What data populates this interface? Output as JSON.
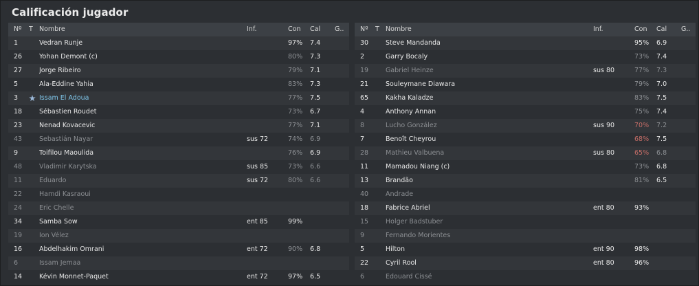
{
  "title": "Calificación jugador",
  "headers": {
    "no": "Nº",
    "t": "T",
    "name": "Nombre",
    "inf": "Inf.",
    "con": "Con",
    "cal": "Cal",
    "g": "G.."
  },
  "left_rows": [
    {
      "no": "1",
      "name": "Vedran Runje",
      "inf": "",
      "con": "97%",
      "cal": "7.4",
      "dim": false,
      "con_dim": false
    },
    {
      "no": "26",
      "name": "Yohan Demont (c)",
      "inf": "",
      "con": "80%",
      "cal": "7.3",
      "dim": false,
      "con_dim": true
    },
    {
      "no": "27",
      "name": "Jorge Ribeiro",
      "inf": "",
      "con": "79%",
      "cal": "7.1",
      "dim": false,
      "con_dim": true
    },
    {
      "no": "5",
      "name": "Ala-Eddine Yahia",
      "inf": "",
      "con": "83%",
      "cal": "7.3",
      "dim": false,
      "con_dim": true
    },
    {
      "no": "3",
      "name": "Issam El Adoua",
      "inf": "",
      "con": "77%",
      "cal": "7.5",
      "dim": false,
      "con_dim": true,
      "link": true,
      "star": true
    },
    {
      "no": "18",
      "name": "Sébastien Roudet",
      "inf": "",
      "con": "73%",
      "cal": "6.7",
      "dim": false,
      "con_dim": true
    },
    {
      "no": "23",
      "name": "Nenad Kovacevic",
      "inf": "",
      "con": "77%",
      "cal": "7.1",
      "dim": false,
      "con_dim": true
    },
    {
      "no": "43",
      "name": "Sebastián Nayar",
      "inf": "sus 72",
      "con": "74%",
      "cal": "6.9",
      "dim": true,
      "con_dim": true
    },
    {
      "no": "9",
      "name": "Toifilou Maoulida",
      "inf": "",
      "con": "76%",
      "cal": "6.9",
      "dim": false,
      "con_dim": true
    },
    {
      "no": "48",
      "name": "Vladimir Karytska",
      "inf": "sus 85",
      "con": "73%",
      "cal": "6.6",
      "dim": true,
      "con_dim": true
    },
    {
      "no": "11",
      "name": "Eduardo",
      "inf": "sus 72",
      "con": "80%",
      "cal": "6.6",
      "dim": true,
      "con_dim": true
    },
    {
      "no": "22",
      "name": "Hamdi Kasraoui",
      "inf": "",
      "con": "",
      "cal": "",
      "dim": true,
      "con_dim": false
    },
    {
      "no": "24",
      "name": "Eric Chelle",
      "inf": "",
      "con": "",
      "cal": "",
      "dim": true,
      "con_dim": false
    },
    {
      "no": "34",
      "name": "Samba Sow",
      "inf": "ent 85",
      "con": "99%",
      "cal": "",
      "dim": false,
      "con_dim": false
    },
    {
      "no": "19",
      "name": "Ion Vélez",
      "inf": "",
      "con": "",
      "cal": "",
      "dim": true,
      "con_dim": false
    },
    {
      "no": "16",
      "name": "Abdelhakim Omrani",
      "inf": "ent 72",
      "con": "90%",
      "cal": "6.8",
      "dim": false,
      "con_dim": true
    },
    {
      "no": "6",
      "name": "Issam Jemaa",
      "inf": "",
      "con": "",
      "cal": "",
      "dim": true,
      "con_dim": false
    },
    {
      "no": "14",
      "name": "Kévin Monnet-Paquet",
      "inf": "ent 72",
      "con": "97%",
      "cal": "6.5",
      "dim": false,
      "con_dim": false
    }
  ],
  "right_rows": [
    {
      "no": "30",
      "name": "Steve Mandanda",
      "inf": "",
      "con": "95%",
      "cal": "6.9",
      "dim": false,
      "con_dim": false
    },
    {
      "no": "2",
      "name": "Garry Bocaly",
      "inf": "",
      "con": "73%",
      "cal": "7.4",
      "dim": false,
      "con_dim": true
    },
    {
      "no": "19",
      "name": "Gabriel Heinze",
      "inf": "sus 80",
      "con": "77%",
      "cal": "7.3",
      "dim": true,
      "con_dim": true
    },
    {
      "no": "21",
      "name": "Souleymane Diawara",
      "inf": "",
      "con": "79%",
      "cal": "7.0",
      "dim": false,
      "con_dim": true
    },
    {
      "no": "65",
      "name": "Kakha Kaladze",
      "inf": "",
      "con": "83%",
      "cal": "7.5",
      "dim": false,
      "con_dim": true
    },
    {
      "no": "4",
      "name": "Anthony Annan",
      "inf": "",
      "con": "75%",
      "cal": "7.4",
      "dim": false,
      "con_dim": true
    },
    {
      "no": "8",
      "name": "Lucho González",
      "inf": "sus 90",
      "con": "70%",
      "cal": "7.2",
      "dim": true,
      "con_low": true
    },
    {
      "no": "7",
      "name": "Benoît Cheyrou",
      "inf": "",
      "con": "68%",
      "cal": "7.5",
      "dim": false,
      "con_low": true
    },
    {
      "no": "28",
      "name": "Mathieu Valbuena",
      "inf": "sus 80",
      "con": "65%",
      "cal": "6.8",
      "dim": true,
      "con_low": true
    },
    {
      "no": "11",
      "name": "Mamadou Niang (c)",
      "inf": "",
      "con": "73%",
      "cal": "6.8",
      "dim": false,
      "con_dim": true
    },
    {
      "no": "13",
      "name": "Brandão",
      "inf": "",
      "con": "81%",
      "cal": "6.5",
      "dim": false,
      "con_dim": true
    },
    {
      "no": "40",
      "name": "Andrade",
      "inf": "",
      "con": "",
      "cal": "",
      "dim": true,
      "con_dim": false
    },
    {
      "no": "18",
      "name": "Fabrice Abriel",
      "inf": "ent 80",
      "con": "93%",
      "cal": "",
      "dim": false,
      "con_dim": false
    },
    {
      "no": "15",
      "name": "Holger Badstuber",
      "inf": "",
      "con": "",
      "cal": "",
      "dim": true,
      "con_dim": false
    },
    {
      "no": "9",
      "name": "Fernando Morientes",
      "inf": "",
      "con": "",
      "cal": "",
      "dim": true,
      "con_dim": false
    },
    {
      "no": "5",
      "name": "Hilton",
      "inf": "ent 90",
      "con": "98%",
      "cal": "",
      "dim": false,
      "con_dim": false
    },
    {
      "no": "22",
      "name": "Cyril Rool",
      "inf": "ent 80",
      "con": "96%",
      "cal": "",
      "dim": false,
      "con_dim": false
    },
    {
      "no": "6",
      "name": "Edouard Cissé",
      "inf": "",
      "con": "",
      "cal": "",
      "dim": true,
      "con_dim": false
    }
  ]
}
